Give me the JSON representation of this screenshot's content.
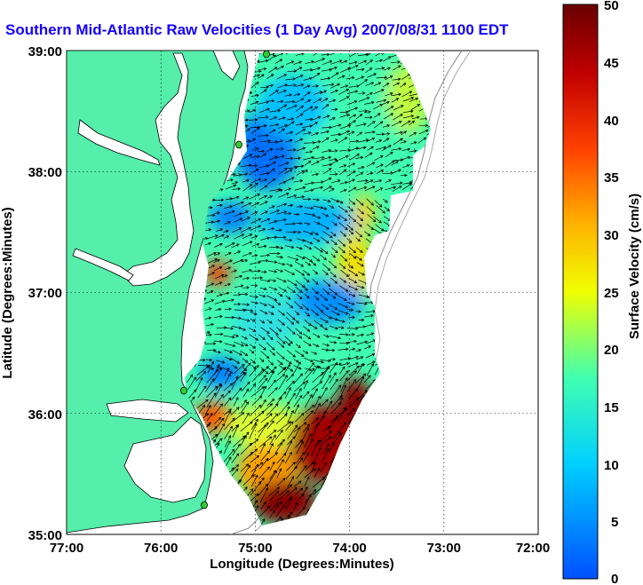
{
  "title": "Southern Mid-Atlantic Raw Velocities (1 Day Avg) 2007/08/31 1100 EDT",
  "x_axis": {
    "label": "Longitude (Degrees:Minutes)",
    "ticks": [
      "77:00",
      "76:00",
      "75:00",
      "74:00",
      "73:00",
      "72:00"
    ]
  },
  "y_axis": {
    "label": "Latitude (Degrees:Minutes)",
    "ticks": [
      "39:00",
      "38:00",
      "37:00",
      "36:00",
      "35:00"
    ]
  },
  "colorbar": {
    "label": "Surface Velocity (cm/s)",
    "ticks": [
      "50",
      "45",
      "40",
      "35",
      "30",
      "25",
      "20",
      "15",
      "10",
      "5",
      "0"
    ],
    "range": [
      0,
      50
    ],
    "colors": [
      "#0050ff",
      "#00b0ff",
      "#00f0ff",
      "#40ffb0",
      "#90ff60",
      "#f0ff00",
      "#ffb000",
      "#ff4000",
      "#c00000",
      "#7a0000"
    ]
  },
  "map": {
    "lon_range": [
      -77,
      -72
    ],
    "lat_range": [
      35,
      39
    ],
    "grid": true,
    "land_color": "#55eeaa",
    "station_color": "#33cc33"
  }
}
